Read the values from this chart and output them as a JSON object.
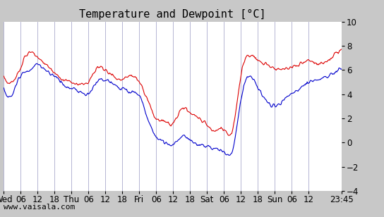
{
  "title": "Temperature and Dewpoint [°C]",
  "ylabel": "",
  "xlabel": "",
  "ylim": [
    -4,
    10
  ],
  "yticks": [
    -4,
    -2,
    0,
    2,
    4,
    6,
    8,
    10
  ],
  "x_labels": [
    "Wed",
    "06",
    "12",
    "18",
    "Thu",
    "06",
    "12",
    "18",
    "Fri",
    "06",
    "12",
    "18",
    "Sat",
    "06",
    "12",
    "18",
    "Sun",
    "06",
    "12",
    "23:45"
  ],
  "bg_color": "#c8c8c8",
  "plot_bg_color": "#ffffff",
  "grid_color": "#aaaacc",
  "temp_color": "#dd0000",
  "dew_color": "#0000cc",
  "watermark": "www.vaisala.com",
  "title_fontsize": 11,
  "tick_fontsize": 8.5,
  "watermark_fontsize": 8
}
